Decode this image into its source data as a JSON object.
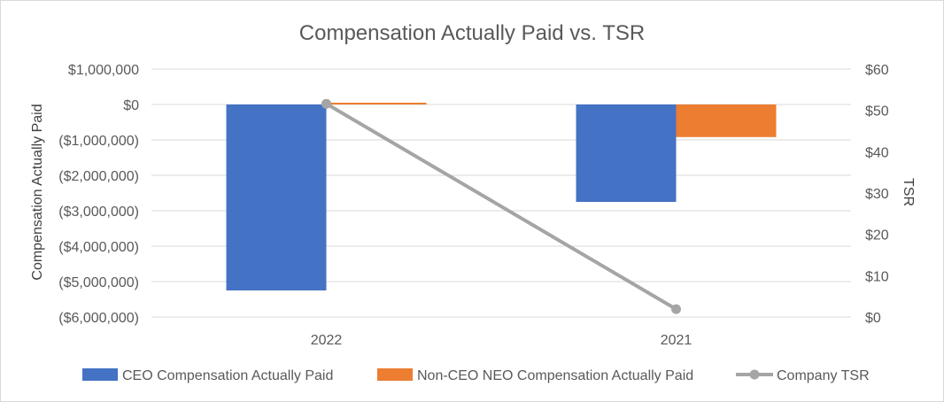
{
  "chart_data": {
    "type": "bar",
    "title": "Compensation Actually Paid vs. TSR",
    "categories": [
      "2022",
      "2021"
    ],
    "y_left": {
      "label": "Compensation Actually Paid",
      "range": [
        -6000000,
        1000000
      ],
      "ticks": [
        {
          "value": 1000000,
          "label": "$1,000,000"
        },
        {
          "value": 0,
          "label": "$0"
        },
        {
          "value": -1000000,
          "label": "($1,000,000)"
        },
        {
          "value": -2000000,
          "label": "($2,000,000)"
        },
        {
          "value": -3000000,
          "label": "($3,000,000)"
        },
        {
          "value": -4000000,
          "label": "($4,000,000)"
        },
        {
          "value": -5000000,
          "label": "($5,000,000)"
        },
        {
          "value": -6000000,
          "label": "($6,000,000)"
        }
      ]
    },
    "y_right": {
      "label": "TSR",
      "range": [
        0,
        60
      ],
      "ticks": [
        {
          "value": 60,
          "label": "$60"
        },
        {
          "value": 50,
          "label": "$50"
        },
        {
          "value": 40,
          "label": "$40"
        },
        {
          "value": 30,
          "label": "$30"
        },
        {
          "value": 20,
          "label": "$20"
        },
        {
          "value": 10,
          "label": "$10"
        },
        {
          "value": 0,
          "label": "$0"
        }
      ]
    },
    "series": [
      {
        "name": "CEO Compensation Actually Paid",
        "kind": "bar",
        "axis": "left",
        "color": "#4472c4",
        "values": [
          -5250000,
          -2750000
        ]
      },
      {
        "name": "Non-CEO NEO Compensation Actually Paid",
        "kind": "bar",
        "axis": "left",
        "color": "#ed7d31",
        "values": [
          50000,
          -920000
        ]
      },
      {
        "name": "Company TSR",
        "kind": "line",
        "axis": "right",
        "color": "#a5a5a5",
        "values": [
          51.6,
          1.9
        ]
      }
    ],
    "grid": true,
    "legend_position": "bottom"
  }
}
